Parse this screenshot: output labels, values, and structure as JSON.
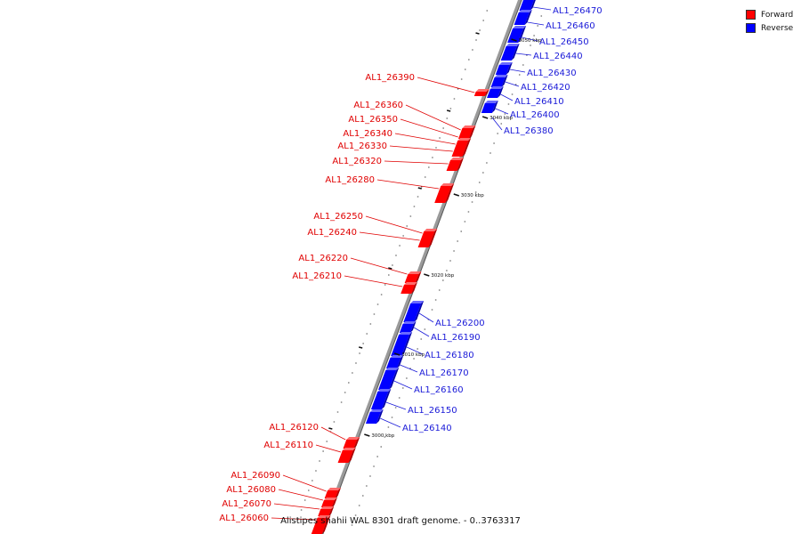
{
  "legend": {
    "forward_label": "Forward",
    "reverse_label": "Reverse",
    "forward_color": "#ff0000",
    "reverse_color": "#0000ff"
  },
  "caption": "Alistipes shahii WAL 8301 draft genome. - 0..3763317",
  "scale_labels": [
    "3050 kbp",
    "3040 kbp",
    "3030 kbp",
    "3020 kbp",
    "3010 kbp",
    "3000 kbp"
  ],
  "forward_genes": [
    "AL1_26390",
    "AL1_26360",
    "AL1_26350",
    "AL1_26340",
    "AL1_26330",
    "AL1_26320",
    "AL1_26280",
    "AL1_26250",
    "AL1_26240",
    "AL1_26220",
    "AL1_26210",
    "AL1_26120",
    "AL1_26110",
    "AL1_26090",
    "AL1_26080",
    "AL1_26070",
    "AL1_26060"
  ],
  "reverse_genes": [
    "AL1_26470",
    "AL1_26460",
    "AL1_26450",
    "AL1_26440",
    "AL1_26430",
    "AL1_26420",
    "AL1_26410",
    "AL1_26400",
    "AL1_26380",
    "AL1_26200",
    "AL1_26190",
    "AL1_26180",
    "AL1_26170",
    "AL1_26160",
    "AL1_26150",
    "AL1_26140"
  ]
}
